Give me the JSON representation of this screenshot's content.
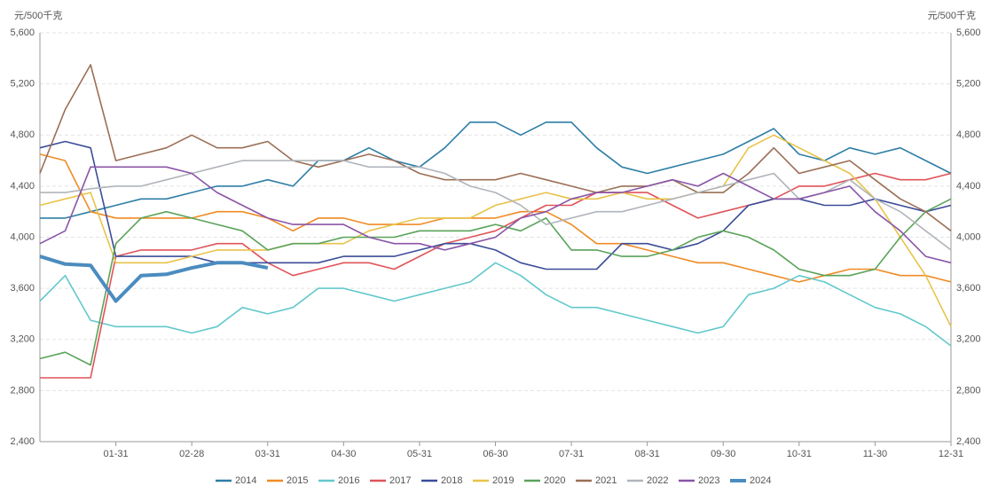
{
  "chart_data": {
    "type": "line",
    "y_axis_label": "元/500千克",
    "y2_axis_label": "元/500千克",
    "categories": [
      null,
      null,
      null,
      "01-31",
      null,
      null,
      "02-28",
      null,
      null,
      "03-31",
      null,
      null,
      "04-30",
      null,
      null,
      "05-31",
      null,
      null,
      "06-30",
      null,
      null,
      "07-31",
      null,
      null,
      "08-31",
      null,
      null,
      "09-30",
      null,
      null,
      "10-31",
      null,
      null,
      "11-30",
      null,
      null,
      "12-31"
    ],
    "ylim": [
      2400,
      5600
    ],
    "yticks": [
      {
        "value": 2400,
        "label": "2,400"
      },
      {
        "value": 2800,
        "label": "2,800"
      },
      {
        "value": 3200,
        "label": "3,200"
      },
      {
        "value": 3600,
        "label": "3,600"
      },
      {
        "value": 4000,
        "label": "4,000"
      },
      {
        "value": 4400,
        "label": "4,400"
      },
      {
        "value": 4800,
        "label": "4,800"
      },
      {
        "value": 5200,
        "label": "5,200"
      },
      {
        "value": 5600,
        "label": "5,600"
      }
    ],
    "y2lim": [
      2400,
      5600
    ],
    "y2ticks": [
      {
        "value": 2400,
        "label": "2,400"
      },
      {
        "value": 2800,
        "label": "2,800"
      },
      {
        "value": 3200,
        "label": "3,200"
      },
      {
        "value": 3600,
        "label": "3,600"
      },
      {
        "value": 4000,
        "label": "4,000"
      },
      {
        "value": 4400,
        "label": "4,400"
      },
      {
        "value": 4800,
        "label": "4,800"
      },
      {
        "value": 5200,
        "label": "5,200"
      },
      {
        "value": 5600,
        "label": "5,600"
      }
    ],
    "grid": true,
    "legend": "bottom",
    "series": [
      {
        "name": "2014",
        "color": "#2e7ea6",
        "values": [
          4150,
          4150,
          4200,
          4250,
          4300,
          4300,
          4350,
          4400,
          4400,
          4450,
          4400,
          4600,
          4600,
          4700,
          4600,
          4550,
          4700,
          4900,
          4900,
          4800,
          4900,
          4900,
          4700,
          4550,
          4500,
          4550,
          4600,
          4650,
          4750,
          4850,
          4650,
          4600,
          4700,
          4650,
          4700,
          4600,
          4500
        ]
      },
      {
        "name": "2015",
        "color": "#f08b24",
        "values": [
          4650,
          4600,
          4200,
          4150,
          4150,
          4150,
          4150,
          4200,
          4200,
          4150,
          4050,
          4150,
          4150,
          4100,
          4100,
          4100,
          4150,
          4150,
          4150,
          4200,
          4200,
          4100,
          3950,
          3950,
          3900,
          3850,
          3800,
          3800,
          3750,
          3700,
          3650,
          3700,
          3750,
          3750,
          3700,
          3700,
          3650
        ]
      },
      {
        "name": "2016",
        "color": "#63c8cc",
        "values": [
          3500,
          3700,
          3350,
          3300,
          3300,
          3300,
          3250,
          3300,
          3450,
          3400,
          3450,
          3600,
          3600,
          3550,
          3500,
          3550,
          3600,
          3650,
          3800,
          3700,
          3550,
          3450,
          3450,
          3400,
          3350,
          3300,
          3250,
          3300,
          3550,
          3600,
          3700,
          3650,
          3550,
          3450,
          3400,
          3300,
          3150
        ]
      },
      {
        "name": "2017",
        "color": "#e0545a",
        "values": [
          2900,
          2900,
          2900,
          3850,
          3900,
          3900,
          3900,
          3950,
          3950,
          3800,
          3700,
          3750,
          3800,
          3800,
          3750,
          3850,
          3950,
          4000,
          4050,
          4150,
          4250,
          4250,
          4350,
          4350,
          4350,
          4250,
          4150,
          4200,
          4250,
          4300,
          4400,
          4400,
          4450,
          4500,
          4450,
          4450,
          4500
        ]
      },
      {
        "name": "2018",
        "color": "#3c4d99",
        "values": [
          4700,
          4750,
          4700,
          3850,
          3850,
          3850,
          3850,
          3800,
          3800,
          3800,
          3800,
          3800,
          3850,
          3850,
          3850,
          3900,
          3950,
          3950,
          3900,
          3800,
          3750,
          3750,
          3750,
          3950,
          3950,
          3900,
          3950,
          4050,
          4250,
          4300,
          4300,
          4250,
          4250,
          4300,
          4250,
          4200,
          4250
        ]
      },
      {
        "name": "2019",
        "color": "#e8c34a",
        "values": [
          4250,
          4300,
          4350,
          3800,
          3800,
          3800,
          3850,
          3900,
          3900,
          3900,
          3950,
          3950,
          3950,
          4050,
          4100,
          4150,
          4150,
          4150,
          4250,
          4300,
          4350,
          4300,
          4300,
          4350,
          4300,
          4300,
          4350,
          4400,
          4700,
          4800,
          4700,
          4600,
          4500,
          4300,
          4000,
          3700,
          3300
        ]
      },
      {
        "name": "2020",
        "color": "#5aa35a",
        "values": [
          3050,
          3100,
          3000,
          3950,
          4150,
          4200,
          4150,
          4100,
          4050,
          3900,
          3950,
          3950,
          4000,
          4000,
          4000,
          4050,
          4050,
          4050,
          4100,
          4050,
          4150,
          3900,
          3900,
          3850,
          3850,
          3900,
          4000,
          4050,
          4000,
          3900,
          3750,
          3700,
          3700,
          3750,
          4000,
          4200,
          4300
        ]
      },
      {
        "name": "2021",
        "color": "#9b6f55",
        "values": [
          4500,
          5000,
          5350,
          4600,
          4650,
          4700,
          4800,
          4700,
          4700,
          4750,
          4600,
          4550,
          4600,
          4650,
          4600,
          4500,
          4450,
          4450,
          4450,
          4500,
          4450,
          4400,
          4350,
          4400,
          4400,
          4450,
          4350,
          4350,
          4500,
          4700,
          4500,
          4550,
          4600,
          4450,
          4300,
          4200,
          4050
        ]
      },
      {
        "name": "2022",
        "color": "#b0b5bb",
        "values": [
          4350,
          4350,
          4380,
          4400,
          4400,
          4450,
          4500,
          4550,
          4600,
          4600,
          4600,
          4600,
          4600,
          4550,
          4550,
          4550,
          4500,
          4400,
          4350,
          4250,
          4100,
          4150,
          4200,
          4200,
          4250,
          4300,
          4350,
          4400,
          4450,
          4500,
          4300,
          4350,
          4450,
          4300,
          4200,
          4050,
          3900
        ]
      },
      {
        "name": "2023",
        "color": "#8a55a6",
        "values": [
          3950,
          4050,
          4550,
          4550,
          4550,
          4550,
          4500,
          4350,
          4250,
          4150,
          4100,
          4100,
          4100,
          4000,
          3950,
          3950,
          3900,
          3950,
          4000,
          4150,
          4200,
          4300,
          4350,
          4350,
          4400,
          4450,
          4400,
          4500,
          4400,
          4300,
          4300,
          4350,
          4400,
          4200,
          4050,
          3850,
          3800
        ]
      },
      {
        "name": "2024",
        "color": "#4b8cbf",
        "width": 4,
        "values": [
          3850,
          3790,
          3780,
          3500,
          3700,
          3710,
          3760,
          3800,
          3800,
          3760,
          null,
          null,
          null,
          null,
          null,
          null,
          null,
          null,
          null,
          null,
          null,
          null,
          null,
          null,
          null,
          null,
          null,
          null,
          null,
          null,
          null,
          null,
          null,
          null,
          null,
          null,
          null
        ]
      }
    ]
  }
}
